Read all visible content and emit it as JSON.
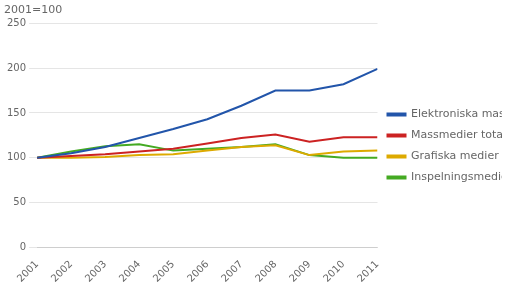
{
  "chart_data": {
    "type": "line",
    "subtitle": "2001=100",
    "x": [
      2001,
      2002,
      2003,
      2004,
      2005,
      2006,
      2007,
      2008,
      2009,
      2010,
      2011
    ],
    "series": [
      {
        "name": "Elektroniska massmedier",
        "color": "#2255aa",
        "values": [
          100,
          105,
          112,
          122,
          132,
          143,
          158,
          175,
          175,
          182,
          199
        ]
      },
      {
        "name": "Massmedier totalt",
        "color": "#cc2222",
        "values": [
          100,
          102,
          104,
          107,
          110,
          116,
          122,
          126,
          118,
          123,
          123
        ]
      },
      {
        "name": "Grafiska medier",
        "color": "#ddaa00",
        "values": [
          100,
          100,
          101,
          103,
          104,
          108,
          112,
          114,
          103,
          107,
          108
        ]
      },
      {
        "name": "Inspelningsmedier",
        "color": "#44aa22",
        "values": [
          100,
          107,
          113,
          115,
          108,
          110,
          112,
          115,
          103,
          100,
          100
        ]
      }
    ],
    "xlim": [
      2001,
      2011
    ],
    "xticks": [
      2001,
      2002,
      2003,
      2004,
      2005,
      2006,
      2007,
      2008,
      2009,
      2010,
      2011
    ],
    "ylim": [
      0,
      250
    ],
    "yticks": [
      0,
      50,
      100,
      150,
      200,
      250
    ],
    "grid": "y",
    "legend": "right"
  }
}
